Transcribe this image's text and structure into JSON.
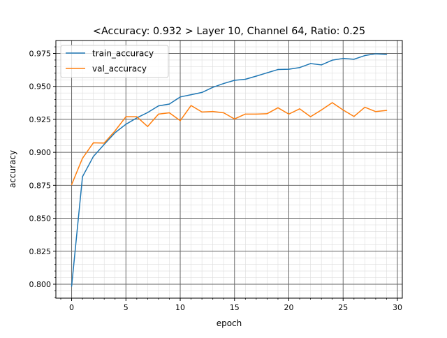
{
  "chart_data": {
    "type": "line",
    "title": "<Accuracy: 0.932 > Layer 10, Channel 64, Ratio: 0.25",
    "xlabel": "epoch",
    "ylabel": "accuracy",
    "xlim": [
      -1.45,
      30.45
    ],
    "ylim": [
      0.7894,
      0.9848
    ],
    "xticks": [
      0,
      5,
      10,
      15,
      20,
      25,
      30
    ],
    "xtick_labels": [
      "0",
      "5",
      "10",
      "15",
      "20",
      "25",
      "30"
    ],
    "yticks": [
      0.8,
      0.825,
      0.85,
      0.875,
      0.9,
      0.925,
      0.95,
      0.975
    ],
    "ytick_labels": [
      "0.800",
      "0.825",
      "0.850",
      "0.875",
      "0.900",
      "0.925",
      "0.950",
      "0.975"
    ],
    "grid": true,
    "minor_grid": true,
    "legend_position": "top-left",
    "x": [
      0,
      1,
      2,
      3,
      4,
      5,
      6,
      7,
      8,
      9,
      10,
      11,
      12,
      13,
      14,
      15,
      16,
      17,
      18,
      19,
      20,
      21,
      22,
      23,
      24,
      25,
      26,
      27,
      28,
      29
    ],
    "series": [
      {
        "name": "train_accuracy",
        "color": "#1f77b4",
        "values": [
          0.7985,
          0.8815,
          0.8968,
          0.906,
          0.9149,
          0.9213,
          0.9261,
          0.9302,
          0.9352,
          0.9366,
          0.942,
          0.9437,
          0.9454,
          0.9493,
          0.9522,
          0.9546,
          0.9554,
          0.9578,
          0.9603,
          0.9628,
          0.963,
          0.9643,
          0.9673,
          0.9663,
          0.9699,
          0.9712,
          0.9706,
          0.9734,
          0.9747,
          0.9743
        ]
      },
      {
        "name": "val_accuracy",
        "color": "#ff7f0e",
        "values": [
          0.8755,
          0.8955,
          0.9072,
          0.907,
          0.9163,
          0.927,
          0.927,
          0.9196,
          0.929,
          0.93,
          0.924,
          0.9355,
          0.9306,
          0.931,
          0.93,
          0.9253,
          0.929,
          0.929,
          0.9293,
          0.9338,
          0.929,
          0.933,
          0.927,
          0.9321,
          0.9377,
          0.9321,
          0.9272,
          0.9342,
          0.9309,
          0.9318
        ]
      }
    ]
  }
}
